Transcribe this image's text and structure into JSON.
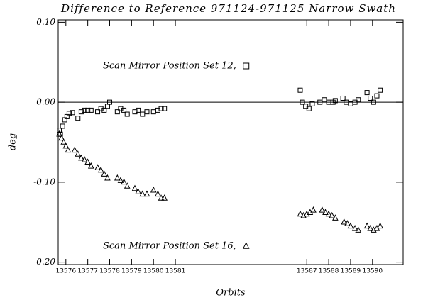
{
  "chart_data": {
    "type": "scatter",
    "title": "Difference to Reference 971124-971125 Narrow Swath",
    "xlabel": "Orbits",
    "ylabel": "deg",
    "xlim": [
      13575.65,
      13591.4
    ],
    "ylim": [
      -0.203,
      0.103
    ],
    "xticks": [
      13576,
      13577,
      13578,
      13579,
      13580,
      13581,
      13587,
      13588,
      13589,
      13590
    ],
    "yticks": [
      {
        "value": -0.2,
        "label": "-0.20"
      },
      {
        "value": -0.1,
        "label": "-0.10"
      },
      {
        "value": 0,
        "label": "0.00"
      },
      {
        "value": 0.1,
        "label": "0.10"
      }
    ],
    "reference_line": 0,
    "series": [
      {
        "name": "Scan Mirror Position Set 12,",
        "marker": "square",
        "color": "#000000",
        "x": [
          13575.7,
          13575.75,
          13575.85,
          13575.95,
          13576.05,
          13576.15,
          13576.3,
          13576.55,
          13576.7,
          13576.85,
          13577.0,
          13577.15,
          13577.45,
          13577.6,
          13577.75,
          13577.9,
          13578.0,
          13578.35,
          13578.5,
          13578.65,
          13578.8,
          13579.15,
          13579.3,
          13579.5,
          13579.7,
          13580.0,
          13580.2,
          13580.35,
          13580.5,
          13586.7,
          13586.8,
          13586.95,
          13587.1,
          13587.25,
          13587.6,
          13587.8,
          13588.0,
          13588.2,
          13588.3,
          13588.65,
          13588.8,
          13589.0,
          13589.2,
          13589.35,
          13589.75,
          13589.9,
          13590.05,
          13590.2,
          13590.35
        ],
        "values": [
          -0.035,
          -0.04,
          -0.03,
          -0.022,
          -0.018,
          -0.014,
          -0.013,
          -0.02,
          -0.012,
          -0.01,
          -0.01,
          -0.01,
          -0.012,
          -0.008,
          -0.01,
          -0.005,
          0.0,
          -0.012,
          -0.008,
          -0.01,
          -0.015,
          -0.012,
          -0.01,
          -0.015,
          -0.012,
          -0.012,
          -0.01,
          -0.008,
          -0.008,
          0.015,
          0.0,
          -0.005,
          -0.008,
          -0.002,
          0.0,
          0.003,
          0.0,
          0.0,
          0.002,
          0.005,
          0.0,
          -0.002,
          0.0,
          0.003,
          0.012,
          0.005,
          0.0,
          0.008,
          0.015
        ]
      },
      {
        "name": "Scan Mirror Position Set 16,",
        "marker": "triangle",
        "color": "#000000",
        "x": [
          13575.7,
          13575.8,
          13575.9,
          13576.0,
          13576.1,
          13576.4,
          13576.55,
          13576.7,
          13576.85,
          13577.0,
          13577.15,
          13577.45,
          13577.6,
          13577.75,
          13577.9,
          13578.35,
          13578.5,
          13578.65,
          13578.8,
          13579.15,
          13579.3,
          13579.5,
          13579.7,
          13580.0,
          13580.2,
          13580.35,
          13580.5,
          13586.7,
          13586.85,
          13587.0,
          13587.15,
          13587.3,
          13587.7,
          13587.85,
          13588.0,
          13588.15,
          13588.3,
          13588.7,
          13588.85,
          13589.0,
          13589.2,
          13589.35,
          13589.75,
          13589.9,
          13590.05,
          13590.2,
          13590.35
        ],
        "values": [
          -0.04,
          -0.045,
          -0.05,
          -0.055,
          -0.06,
          -0.06,
          -0.065,
          -0.07,
          -0.072,
          -0.075,
          -0.08,
          -0.082,
          -0.085,
          -0.09,
          -0.095,
          -0.095,
          -0.098,
          -0.1,
          -0.105,
          -0.108,
          -0.112,
          -0.115,
          -0.115,
          -0.11,
          -0.115,
          -0.12,
          -0.12,
          -0.14,
          -0.142,
          -0.14,
          -0.138,
          -0.135,
          -0.135,
          -0.138,
          -0.14,
          -0.142,
          -0.145,
          -0.15,
          -0.152,
          -0.155,
          -0.158,
          -0.16,
          -0.155,
          -0.158,
          -0.16,
          -0.158,
          -0.155
        ]
      }
    ]
  }
}
